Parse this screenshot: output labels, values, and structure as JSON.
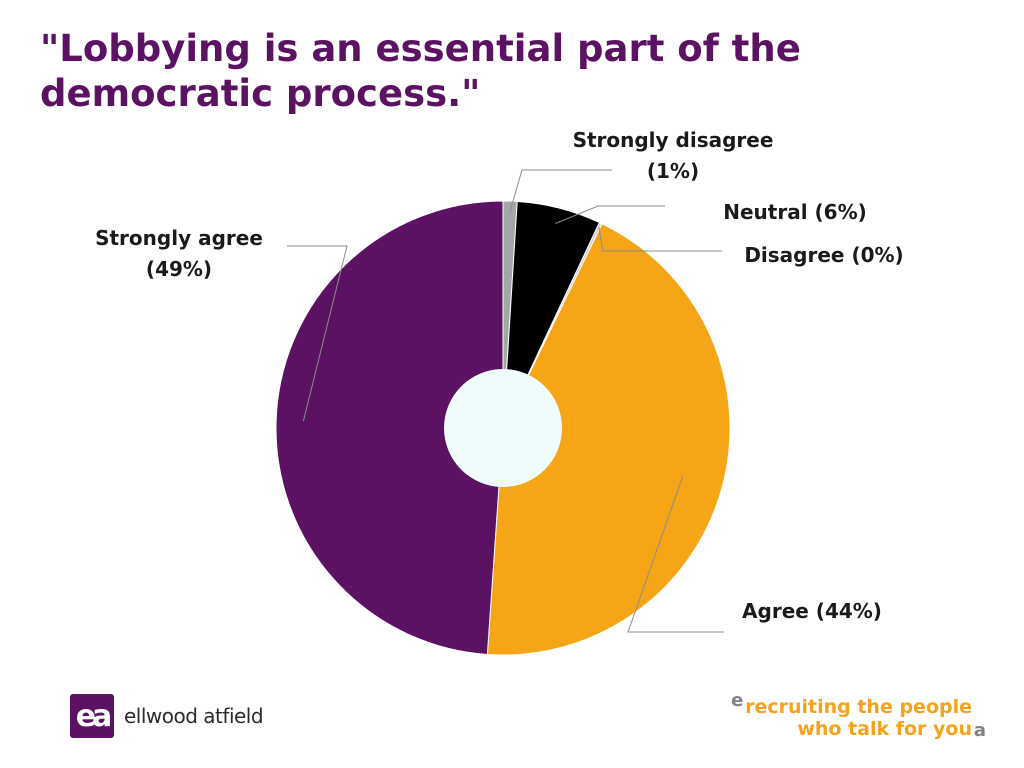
{
  "slide": {
    "title": "\"Lobbying is an essential part of the democratic process.\""
  },
  "chart_data": {
    "type": "pie",
    "style": "doughnut",
    "start_angle_deg": 0,
    "direction": "clockwise",
    "center_color": "#f0fbfc",
    "slices": [
      {
        "label": "Strongly disagree",
        "value_label": "(1%)",
        "value": 1,
        "color": "#a6a6a6"
      },
      {
        "label": "Neutral",
        "value_label": "(6%)",
        "value": 6,
        "color": "#000000"
      },
      {
        "label": "Disagree",
        "value_label": "(0%)",
        "value": 0.2,
        "color": "#d9c4dc"
      },
      {
        "label": "Agree",
        "value_label": "(44%)",
        "value": 44,
        "color": "#f5a516"
      },
      {
        "label": "Strongly agree",
        "value_label": "(49%)",
        "value": 49,
        "color": "#5b1263"
      }
    ]
  },
  "footer": {
    "logo_mark": "ea",
    "logo_text": "ellwood atfield",
    "tagline_open": "e",
    "tagline_line1": "recruiting the people",
    "tagline_line2": "who talk for you",
    "tagline_close": "a"
  }
}
